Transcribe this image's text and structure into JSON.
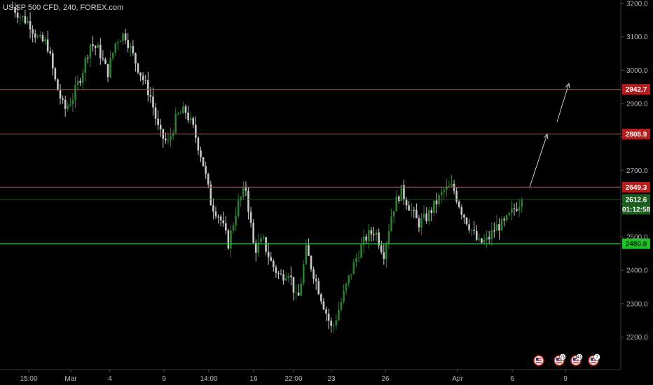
{
  "title": "US SP 500 CFD, 240, FOREX.com",
  "colors": {
    "background": "#000000",
    "up_candle": "#2e7d32",
    "down_candle": "#c8c8c8",
    "resistance": "#d32f2f",
    "support": "#22c02a",
    "current_price": "#2a6b2a",
    "axis_text": "#b2b5be",
    "arrow": "#c8c8c8"
  },
  "chart_data": {
    "type": "candlestick",
    "ylim": [
      2120,
      3220
    ],
    "yticks": [
      2200.0,
      2300.0,
      2400.0,
      2500.0,
      2600.0,
      2700.0,
      2800.0,
      2900.0,
      3000.0,
      3100.0,
      3200.0
    ],
    "ytick_labels": [
      "2200.0",
      "2300.0",
      "2400.0",
      "2500.0",
      "2600.0",
      "2700.0",
      "2800.0",
      "2900.0",
      "3000.0",
      "3100.0",
      "3200.0"
    ],
    "xtick_labels": [
      "15:00",
      "Mar",
      "4",
      "9",
      "14:00",
      "16",
      "22:00",
      "23",
      "26",
      "Apr",
      "6",
      "9"
    ],
    "horizontal_levels": [
      {
        "label": "2942.7",
        "value": 2942.7,
        "role": "resistance"
      },
      {
        "label": "2808.9",
        "value": 2808.9,
        "role": "resistance"
      },
      {
        "label": "2649.3",
        "value": 2649.3,
        "role": "resistance"
      },
      {
        "label": "2480.0",
        "value": 2480.0,
        "role": "support"
      }
    ],
    "current_price": {
      "label": "2612.6",
      "value": 2612.6,
      "countdown": "01:12:58"
    },
    "projection_arrows": [
      {
        "from": {
          "date": "Apr 6",
          "price": 2650
        },
        "to": {
          "date": "Apr 8",
          "price": 2808
        }
      },
      {
        "from": {
          "date": "Apr 9",
          "price": 2840
        },
        "to": {
          "date": "Apr 10",
          "price": 2960
        }
      }
    ],
    "waypoints": [
      3190,
      3160,
      3140,
      3090,
      3080,
      2960,
      2880,
      2920,
      2990,
      3080,
      3060,
      2990,
      3090,
      3110,
      3040,
      2980,
      2920,
      2810,
      2780,
      2860,
      2880,
      2820,
      2730,
      2600,
      2560,
      2480,
      2590,
      2650,
      2460,
      2490,
      2420,
      2380,
      2400,
      2300,
      2460,
      2380,
      2300,
      2220,
      2300,
      2380,
      2450,
      2500,
      2520,
      2450,
      2580,
      2640,
      2590,
      2540,
      2560,
      2600,
      2640,
      2650,
      2580,
      2530,
      2480,
      2490,
      2530,
      2540,
      2580,
      2612.6
    ]
  },
  "event_icons": [
    {
      "name": "us-flag-event-icon",
      "count": ""
    },
    {
      "name": "us-flag-event-icon",
      "count": "21"
    },
    {
      "name": "us-flag-event-icon",
      "count": "41"
    },
    {
      "name": "us-flag-event-icon",
      "count": "7"
    }
  ]
}
